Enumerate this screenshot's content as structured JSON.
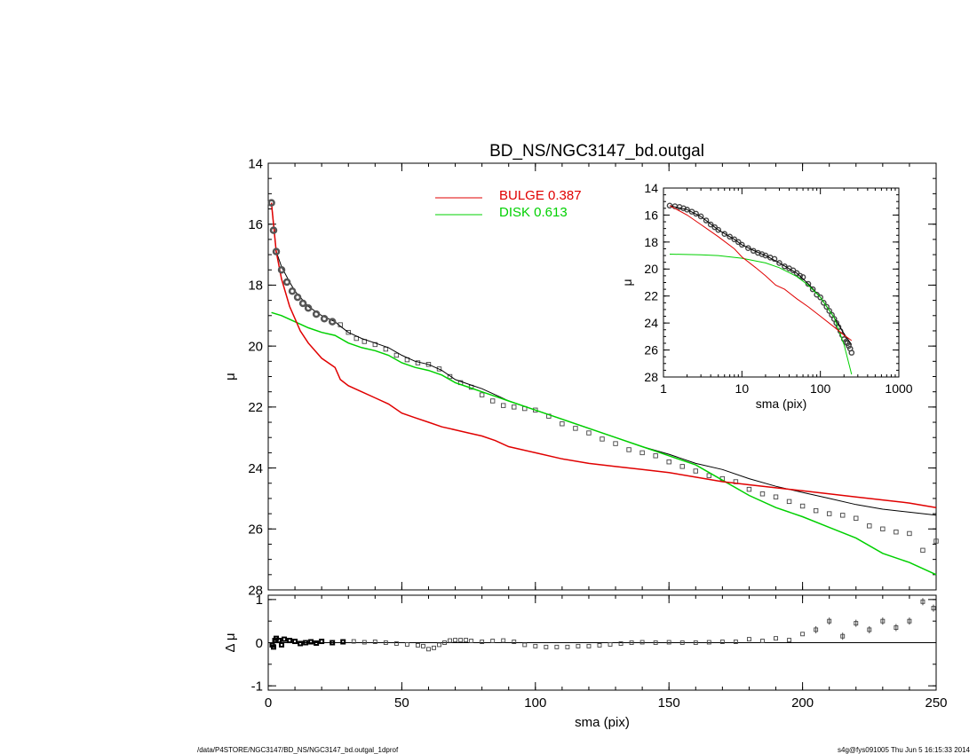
{
  "title": "BD_NS/NGC3147_bd.outgal",
  "footer_left": "/data/P4STORE/NGC3147/BD_NS/NGC3147_bd.outgal_1dprof",
  "footer_right": "s4g@fys091005  Thu Jun  5 16:15:33 2014",
  "colors": {
    "bulge": "#e00000",
    "disk": "#00d000",
    "total": "#000000",
    "data": "#555555"
  },
  "chart_data": [
    {
      "id": "main",
      "type": "line",
      "title": "BD_NS/NGC3147_bd.outgal",
      "xlabel": "",
      "ylabel": "μ",
      "xlim": [
        0,
        250
      ],
      "ylim": [
        28,
        14
      ],
      "yticks": [
        14,
        16,
        18,
        20,
        22,
        24,
        26,
        28
      ],
      "xticks": [
        0,
        50,
        100,
        150,
        200,
        250
      ],
      "legend": [
        {
          "label": "BULGE  0.387",
          "color": "#e00000"
        },
        {
          "label": "DISK  0.613",
          "color": "#00d000"
        }
      ],
      "series": [
        {
          "name": "BULGE",
          "color": "#e00000",
          "x": [
            1.2,
            3,
            5,
            8,
            10,
            12,
            15,
            20,
            25,
            27,
            30,
            35,
            40,
            45,
            50,
            55,
            60,
            65,
            70,
            75,
            80,
            85,
            90,
            100,
            110,
            120,
            130,
            140,
            150,
            160,
            170,
            180,
            190,
            200,
            210,
            220,
            230,
            240,
            250
          ],
          "y": [
            15.3,
            16.9,
            17.8,
            18.7,
            19.1,
            19.5,
            19.9,
            20.4,
            20.7,
            21.1,
            21.3,
            21.5,
            21.7,
            21.9,
            22.2,
            22.35,
            22.5,
            22.65,
            22.75,
            22.85,
            22.95,
            23.1,
            23.3,
            23.5,
            23.7,
            23.85,
            23.95,
            24.05,
            24.15,
            24.3,
            24.45,
            24.55,
            24.65,
            24.75,
            24.85,
            24.95,
            25.05,
            25.15,
            25.3
          ]
        },
        {
          "name": "DISK",
          "color": "#00d000",
          "x": [
            1.2,
            5,
            10,
            15,
            20,
            25,
            30,
            35,
            40,
            45,
            50,
            55,
            60,
            65,
            70,
            75,
            80,
            85,
            90,
            100,
            110,
            120,
            130,
            140,
            150,
            160,
            170,
            180,
            190,
            200,
            210,
            220,
            230,
            240,
            250
          ],
          "y": [
            18.9,
            19.0,
            19.2,
            19.4,
            19.55,
            19.65,
            19.9,
            20.05,
            20.15,
            20.3,
            20.55,
            20.7,
            20.8,
            20.95,
            21.2,
            21.35,
            21.5,
            21.65,
            21.8,
            22.1,
            22.4,
            22.7,
            23.0,
            23.3,
            23.6,
            23.9,
            24.4,
            24.9,
            25.3,
            25.6,
            25.95,
            26.3,
            26.8,
            27.1,
            27.5
          ]
        },
        {
          "name": "TOTAL",
          "color": "#000000",
          "x": [
            1.2,
            3,
            5,
            8,
            10,
            15,
            20,
            25,
            27,
            30,
            35,
            40,
            45,
            50,
            55,
            60,
            65,
            70,
            75,
            80,
            85,
            90,
            100,
            110,
            120,
            130,
            140,
            150,
            160,
            170,
            180,
            190,
            200,
            210,
            220,
            230,
            240,
            250
          ],
          "y": [
            15.3,
            16.9,
            17.4,
            17.9,
            18.2,
            18.7,
            19.0,
            19.2,
            19.35,
            19.55,
            19.75,
            19.9,
            20.05,
            20.3,
            20.5,
            20.6,
            20.8,
            21.1,
            21.25,
            21.4,
            21.6,
            21.8,
            22.1,
            22.4,
            22.7,
            23.0,
            23.3,
            23.55,
            23.85,
            24.05,
            24.35,
            24.6,
            24.8,
            25.0,
            25.2,
            25.35,
            25.45,
            25.55
          ]
        },
        {
          "name": "DATA",
          "color": "#555555",
          "marker": "square",
          "x": [
            1.2,
            2,
            3,
            5,
            7,
            9,
            11,
            13,
            15,
            18,
            21,
            24,
            27,
            30,
            33,
            36,
            40,
            44,
            48,
            52,
            56,
            60,
            64,
            68,
            72,
            76,
            80,
            84,
            88,
            92,
            96,
            100,
            105,
            110,
            115,
            120,
            125,
            130,
            135,
            140,
            145,
            150,
            155,
            160,
            165,
            170,
            175,
            180,
            185,
            190,
            195,
            200,
            205,
            210,
            215,
            220,
            225,
            230,
            235,
            240,
            245,
            250
          ],
          "y": [
            15.3,
            16.2,
            16.9,
            17.5,
            17.9,
            18.2,
            18.4,
            18.6,
            18.75,
            18.95,
            19.1,
            19.2,
            19.3,
            19.55,
            19.75,
            19.85,
            19.95,
            20.1,
            20.3,
            20.45,
            20.55,
            20.6,
            20.75,
            21.0,
            21.2,
            21.35,
            21.6,
            21.8,
            21.95,
            22.0,
            22.05,
            22.1,
            22.3,
            22.55,
            22.7,
            22.85,
            23.05,
            23.2,
            23.4,
            23.5,
            23.6,
            23.8,
            23.95,
            24.1,
            24.25,
            24.35,
            24.45,
            24.7,
            24.85,
            24.95,
            25.1,
            25.25,
            25.4,
            25.5,
            25.55,
            25.65,
            25.9,
            26.0,
            26.1,
            26.15,
            26.7,
            26.4
          ]
        }
      ]
    },
    {
      "id": "residual",
      "type": "scatter",
      "xlabel": "sma (pix)",
      "ylabel": "Δ μ",
      "xlim": [
        0,
        250
      ],
      "ylim": [
        -1.1,
        1.1
      ],
      "yticks": [
        -1,
        0,
        1
      ],
      "xticks": [
        0,
        50,
        100,
        150,
        200,
        250
      ],
      "series": [
        {
          "name": "RESIDUAL",
          "x": [
            1.5,
            2,
            2.5,
            3,
            4,
            5,
            6,
            8,
            10,
            12,
            14,
            16,
            18,
            20,
            24,
            28,
            32,
            36,
            40,
            44,
            48,
            52,
            56,
            58,
            60,
            62,
            64,
            66,
            68,
            70,
            72,
            74,
            76,
            80,
            84,
            88,
            92,
            96,
            100,
            104,
            108,
            112,
            116,
            120,
            124,
            128,
            132,
            136,
            140,
            145,
            150,
            155,
            160,
            165,
            170,
            175,
            180,
            185,
            190,
            195,
            200,
            205,
            210,
            215,
            220,
            225,
            230,
            235,
            240,
            245,
            249
          ],
          "y": [
            -0.05,
            -0.1,
            0.05,
            0.1,
            0.05,
            -0.05,
            0.08,
            0.05,
            0.03,
            -0.02,
            0.0,
            0.02,
            -0.01,
            0.03,
            0.0,
            0.02,
            0.03,
            0.01,
            0.02,
            0.0,
            -0.02,
            -0.04,
            -0.06,
            -0.08,
            -0.15,
            -0.12,
            -0.05,
            0.0,
            0.05,
            0.06,
            0.06,
            0.06,
            0.04,
            0.02,
            0.04,
            0.05,
            0.02,
            -0.05,
            -0.08,
            -0.1,
            -0.1,
            -0.1,
            -0.08,
            -0.08,
            -0.06,
            -0.04,
            -0.02,
            0.0,
            0.01,
            0.0,
            0.01,
            0.0,
            0.0,
            0.01,
            0.02,
            0.02,
            0.08,
            0.04,
            0.1,
            0.06,
            0.2,
            0.3,
            0.5,
            0.15,
            0.45,
            0.3,
            0.5,
            0.35,
            0.5,
            0.95,
            0.8
          ]
        }
      ]
    },
    {
      "id": "inset",
      "type": "line",
      "xscale": "log",
      "xlabel": "sma (pix)",
      "ylabel": "μ",
      "xlim": [
        1,
        1000
      ],
      "ylim": [
        28,
        14
      ],
      "yticks": [
        14,
        16,
        18,
        20,
        22,
        24,
        26,
        28
      ],
      "xticks": [
        1,
        10,
        100,
        1000
      ],
      "series": [
        {
          "name": "BULGE",
          "color": "#e00000",
          "x": [
            1.2,
            2,
            3,
            5,
            8,
            10,
            15,
            20,
            27,
            35,
            50,
            70,
            100,
            150,
            200,
            250
          ],
          "y": [
            15.3,
            16.0,
            16.7,
            17.6,
            18.5,
            19.1,
            19.9,
            20.5,
            21.2,
            21.5,
            22.2,
            22.8,
            23.5,
            24.3,
            24.9,
            25.3
          ]
        },
        {
          "name": "DISK",
          "color": "#00d000",
          "x": [
            1.2,
            3,
            5,
            10,
            20,
            30,
            50,
            70,
            100,
            150,
            200,
            250
          ],
          "y": [
            18.9,
            18.95,
            19.0,
            19.2,
            19.55,
            19.9,
            20.55,
            21.2,
            22.1,
            23.6,
            25.6,
            27.8
          ]
        },
        {
          "name": "TOTAL",
          "color": "#000000",
          "x": [
            1.2,
            2,
            3,
            5,
            8,
            10,
            15,
            20,
            30,
            50,
            70,
            100,
            150,
            200,
            250
          ],
          "y": [
            15.3,
            15.6,
            16.1,
            17.1,
            17.8,
            18.2,
            18.7,
            19.0,
            19.55,
            20.3,
            21.1,
            22.1,
            23.6,
            24.8,
            25.6
          ]
        },
        {
          "name": "DATA",
          "color": "#555555",
          "marker": "circle",
          "x": [
            1.2,
            1.4,
            1.6,
            1.8,
            2,
            2.3,
            2.6,
            3,
            3.5,
            4,
            4.5,
            5,
            6,
            7,
            8,
            9,
            10,
            12,
            14,
            16,
            18,
            20,
            23,
            26,
            30,
            35,
            40,
            45,
            50,
            55,
            60,
            70,
            80,
            90,
            100,
            110,
            120,
            130,
            140,
            150,
            160,
            170,
            180,
            190,
            200,
            210,
            220,
            230,
            240,
            250
          ],
          "y": [
            15.3,
            15.35,
            15.4,
            15.5,
            15.6,
            15.75,
            15.9,
            16.1,
            16.4,
            16.7,
            16.9,
            17.1,
            17.4,
            17.6,
            17.8,
            18.0,
            18.2,
            18.45,
            18.65,
            18.8,
            18.9,
            19.0,
            19.15,
            19.25,
            19.55,
            19.8,
            19.95,
            20.1,
            20.3,
            20.5,
            20.6,
            21.1,
            21.5,
            21.9,
            22.1,
            22.5,
            22.8,
            23.1,
            23.4,
            23.7,
            24.0,
            24.3,
            24.6,
            24.9,
            25.2,
            25.4,
            25.5,
            25.7,
            25.9,
            26.2
          ]
        }
      ]
    }
  ]
}
